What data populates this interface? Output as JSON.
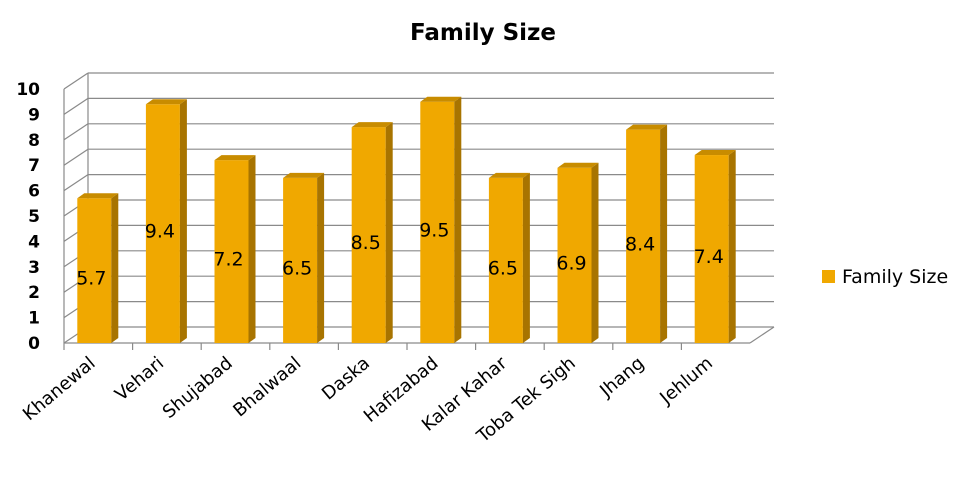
{
  "chart_data": {
    "type": "bar",
    "title": "Family Size",
    "categories": [
      "Khanewal",
      "Vehari",
      "Shujabad",
      "Bhalwaal",
      "Daska",
      "Hafizabad",
      "Kalar Kahar",
      "Toba Tek Sigh",
      "Jhang",
      "Jehlum"
    ],
    "series": [
      {
        "name": "Family Size",
        "values": [
          5.7,
          9.4,
          7.2,
          6.5,
          8.5,
          9.5,
          6.5,
          6.9,
          8.4,
          7.4
        ]
      }
    ],
    "data_labels": [
      "5.7",
      "9.4",
      "7.2",
      "6.5",
      "8.5",
      "9.5",
      "6.5",
      "6.9",
      "8.4",
      "7.4"
    ],
    "ylim": [
      0,
      10
    ],
    "yticks": [
      0,
      1,
      2,
      3,
      4,
      5,
      6,
      7,
      8,
      9,
      10
    ],
    "grid": true,
    "legend_position": "right",
    "bar_color": "#F0A800",
    "bar_side_color": "#A87400",
    "bar_top_color": "#C88C00"
  }
}
